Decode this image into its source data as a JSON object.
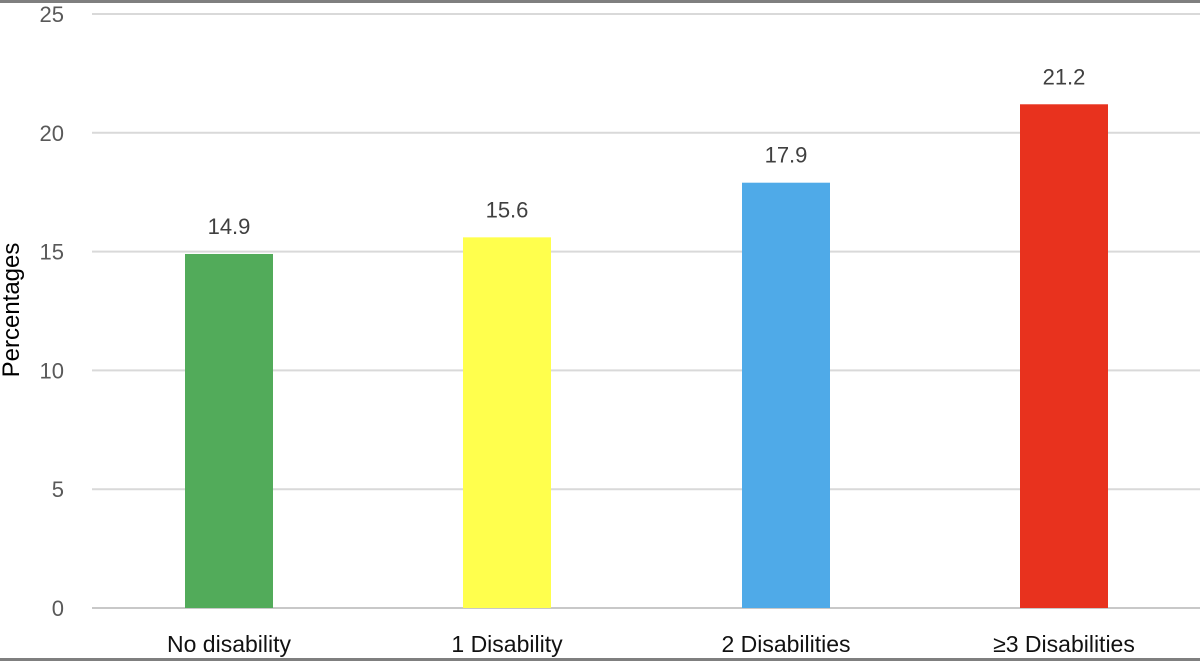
{
  "chart_data": {
    "type": "bar",
    "categories": [
      "No disability",
      "1 Disability",
      "2 Disabilities",
      "≥3 Disabilities"
    ],
    "values": [
      14.9,
      15.6,
      17.9,
      21.2
    ],
    "value_labels": [
      "14.9",
      "15.6",
      "17.9",
      "21.2"
    ],
    "colors": [
      "#52ab5a",
      "#ffff4d",
      "#4faae8",
      "#e8321e"
    ],
    "title": "",
    "xlabel": "",
    "ylabel": "Percentages",
    "ylim": [
      0,
      25
    ],
    "yticks": [
      "0",
      "5",
      "10",
      "15",
      "20",
      "25"
    ],
    "grid": true,
    "legend": "none"
  }
}
